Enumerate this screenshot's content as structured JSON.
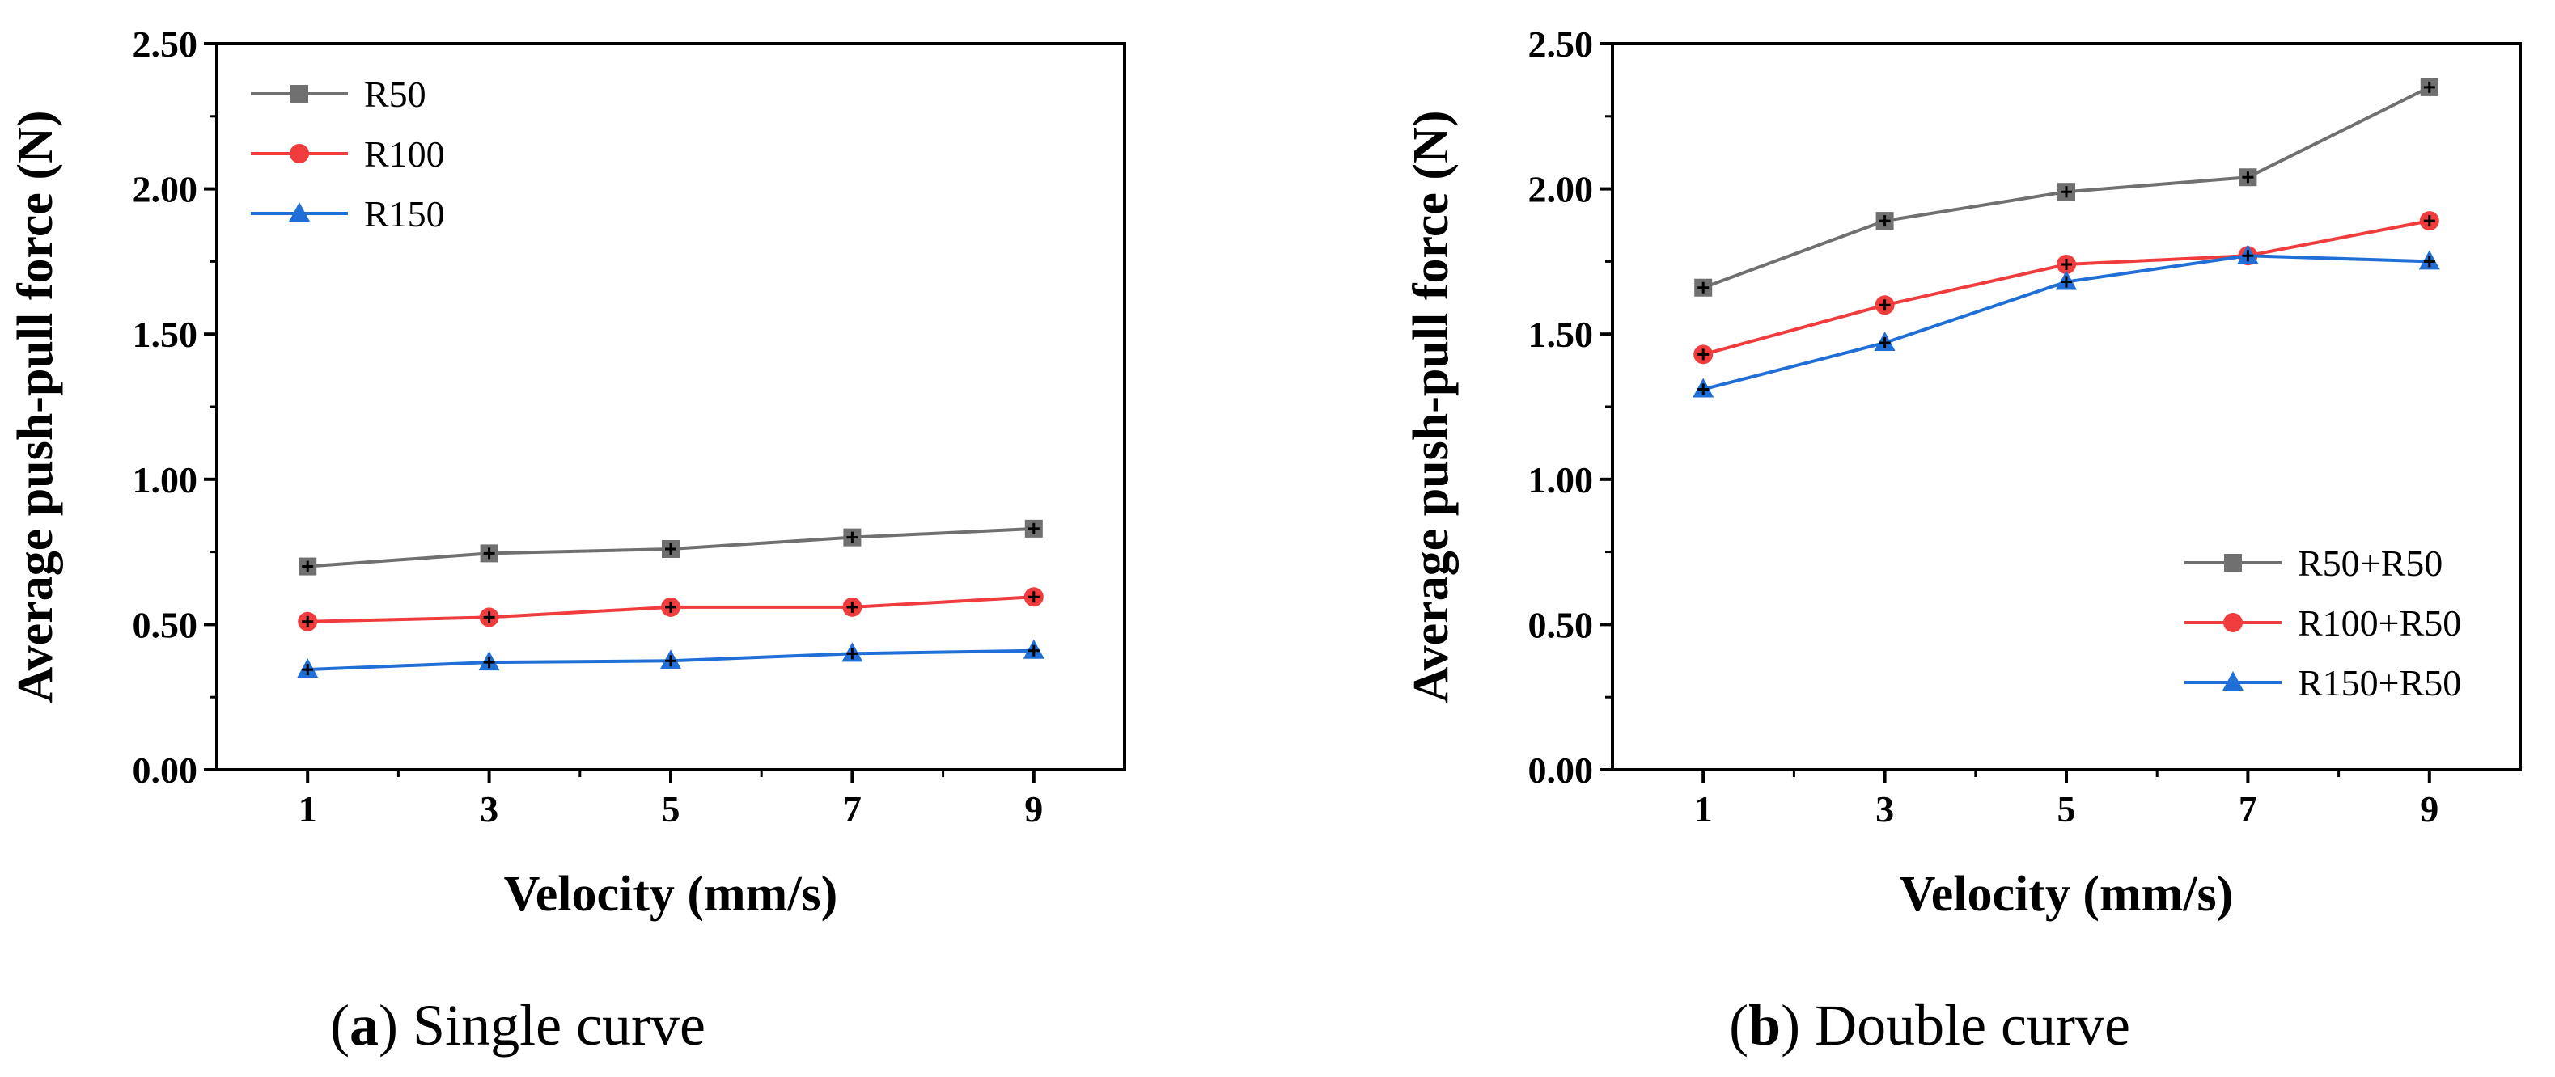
{
  "chart_data": [
    {
      "type": "line",
      "x": [
        1,
        3,
        5,
        7,
        9
      ],
      "xlabel": "Velocity (mm/s)",
      "ylabel": "Average push-pull force (N)",
      "ylim": [
        0,
        2.5
      ],
      "yticks": [
        "0.00",
        "0.50",
        "1.00",
        "1.50",
        "2.00",
        "2.50"
      ],
      "xticks": [
        "1",
        "3",
        "5",
        "7",
        "9"
      ],
      "legend_position": "top-left",
      "grid": false,
      "series": [
        {
          "name": "R50",
          "values": [
            0.7,
            0.745,
            0.76,
            0.8,
            0.83
          ],
          "color": "#707070",
          "marker": "square"
        },
        {
          "name": "R100",
          "values": [
            0.51,
            0.525,
            0.56,
            0.56,
            0.595
          ],
          "color": "#f03c3c",
          "marker": "circle"
        },
        {
          "name": "R150",
          "values": [
            0.345,
            0.37,
            0.375,
            0.4,
            0.41
          ],
          "color": "#1f6fd6",
          "marker": "triangle"
        }
      ],
      "caption_letter": "a",
      "caption_text": "Single curve"
    },
    {
      "type": "line",
      "x": [
        1,
        3,
        5,
        7,
        9
      ],
      "xlabel": "Velocity (mm/s)",
      "ylabel": "Average push-pull force (N)",
      "ylim": [
        0,
        2.5
      ],
      "yticks": [
        "0.00",
        "0.50",
        "1.00",
        "1.50",
        "2.00",
        "2.50"
      ],
      "xticks": [
        "1",
        "3",
        "5",
        "7",
        "9"
      ],
      "legend_position": "bottom-right",
      "grid": false,
      "series": [
        {
          "name": "R50+R50",
          "values": [
            1.66,
            1.89,
            1.99,
            2.04,
            2.35
          ],
          "color": "#707070",
          "marker": "square"
        },
        {
          "name": "R100+R50",
          "values": [
            1.43,
            1.6,
            1.74,
            1.77,
            1.89
          ],
          "color": "#f03c3c",
          "marker": "circle"
        },
        {
          "name": "R150+R50",
          "values": [
            1.31,
            1.47,
            1.68,
            1.77,
            1.75
          ],
          "color": "#1f6fd6",
          "marker": "triangle"
        }
      ],
      "caption_letter": "b",
      "caption_text": "Double curve"
    }
  ],
  "captions": {
    "a_open": "(",
    "a_letter": "a",
    "a_close": ")",
    "a_text": " Single curve",
    "b_open": "(",
    "b_letter": "b",
    "b_close": ")",
    "b_text": " Double curve"
  }
}
